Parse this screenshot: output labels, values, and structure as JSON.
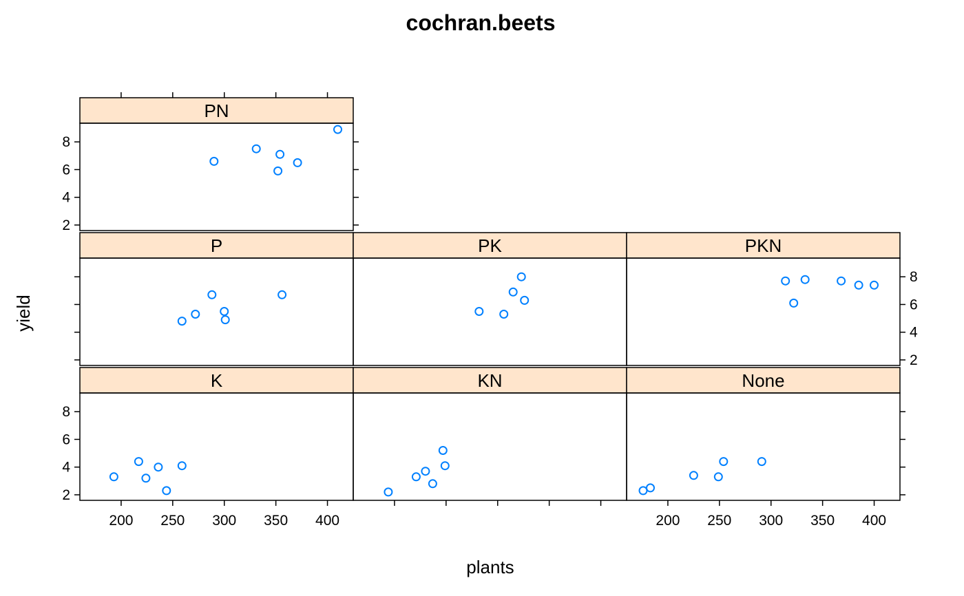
{
  "chart_data": {
    "type": "scatter",
    "title": "cochran.beets",
    "xlabel": "plants",
    "ylabel": "yield",
    "xlim": [
      160,
      425
    ],
    "ylim": [
      1.6,
      9.35
    ],
    "x_ticks": [
      200,
      250,
      300,
      350,
      400
    ],
    "y_ticks": [
      2,
      4,
      6,
      8
    ],
    "grid": false,
    "legend": "none",
    "colors": {
      "point": "#0080ff",
      "strip": "#ffe5cc",
      "frame": "#000000"
    },
    "layout": "3 columns x 3 rows, bottom-to-top",
    "panels": [
      {
        "name": "K",
        "col": 0,
        "row": 0,
        "x": [
          193,
          217,
          224,
          236,
          244,
          259
        ],
        "y": [
          3.3,
          4.4,
          3.2,
          4.0,
          2.3,
          4.1
        ]
      },
      {
        "name": "KN",
        "col": 1,
        "row": 0,
        "x": [
          194,
          221,
          230,
          237,
          247,
          249
        ],
        "y": [
          2.2,
          3.3,
          3.7,
          2.8,
          5.2,
          4.1
        ]
      },
      {
        "name": "None",
        "col": 2,
        "row": 0,
        "x": [
          176,
          183,
          225,
          249,
          254,
          291
        ],
        "y": [
          2.3,
          2.5,
          3.4,
          3.3,
          4.4,
          4.4
        ]
      },
      {
        "name": "P",
        "col": 0,
        "row": 1,
        "x": [
          259,
          272,
          288,
          300,
          301,
          356
        ],
        "y": [
          4.8,
          5.3,
          6.7,
          5.5,
          4.9,
          6.7
        ]
      },
      {
        "name": "PK",
        "col": 1,
        "row": 1,
        "x": [
          282,
          306,
          315,
          323,
          326
        ],
        "y": [
          5.5,
          5.3,
          6.9,
          8.0,
          6.3
        ]
      },
      {
        "name": "PKN",
        "col": 2,
        "row": 1,
        "x": [
          314,
          322,
          333,
          368,
          385,
          400
        ],
        "y": [
          7.7,
          6.1,
          7.8,
          7.7,
          7.4,
          7.4
        ]
      },
      {
        "name": "PN",
        "col": 0,
        "row": 2,
        "x": [
          290,
          331,
          352,
          354,
          371,
          410
        ],
        "y": [
          6.6,
          7.5,
          5.9,
          7.1,
          6.5,
          8.9
        ]
      }
    ]
  }
}
